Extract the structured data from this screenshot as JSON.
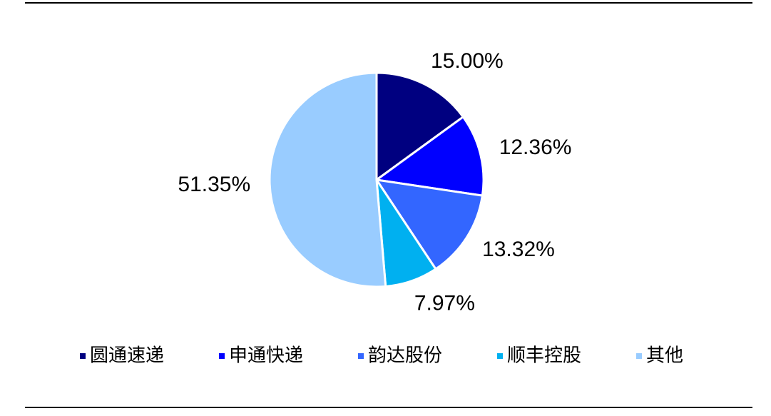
{
  "chart_data": {
    "type": "pie",
    "categories": [
      "圆通速递",
      "申通快递",
      "韵达股份",
      "顺丰控股",
      "其他"
    ],
    "values": [
      15.0,
      12.36,
      13.32,
      7.97,
      51.35
    ],
    "value_labels": [
      "15.00%",
      "12.36%",
      "13.32%",
      "7.97%",
      "51.35%"
    ],
    "colors": [
      "#000080",
      "#0000ff",
      "#3366ff",
      "#00b0f0",
      "#99ccff"
    ],
    "legend": "bottom"
  }
}
